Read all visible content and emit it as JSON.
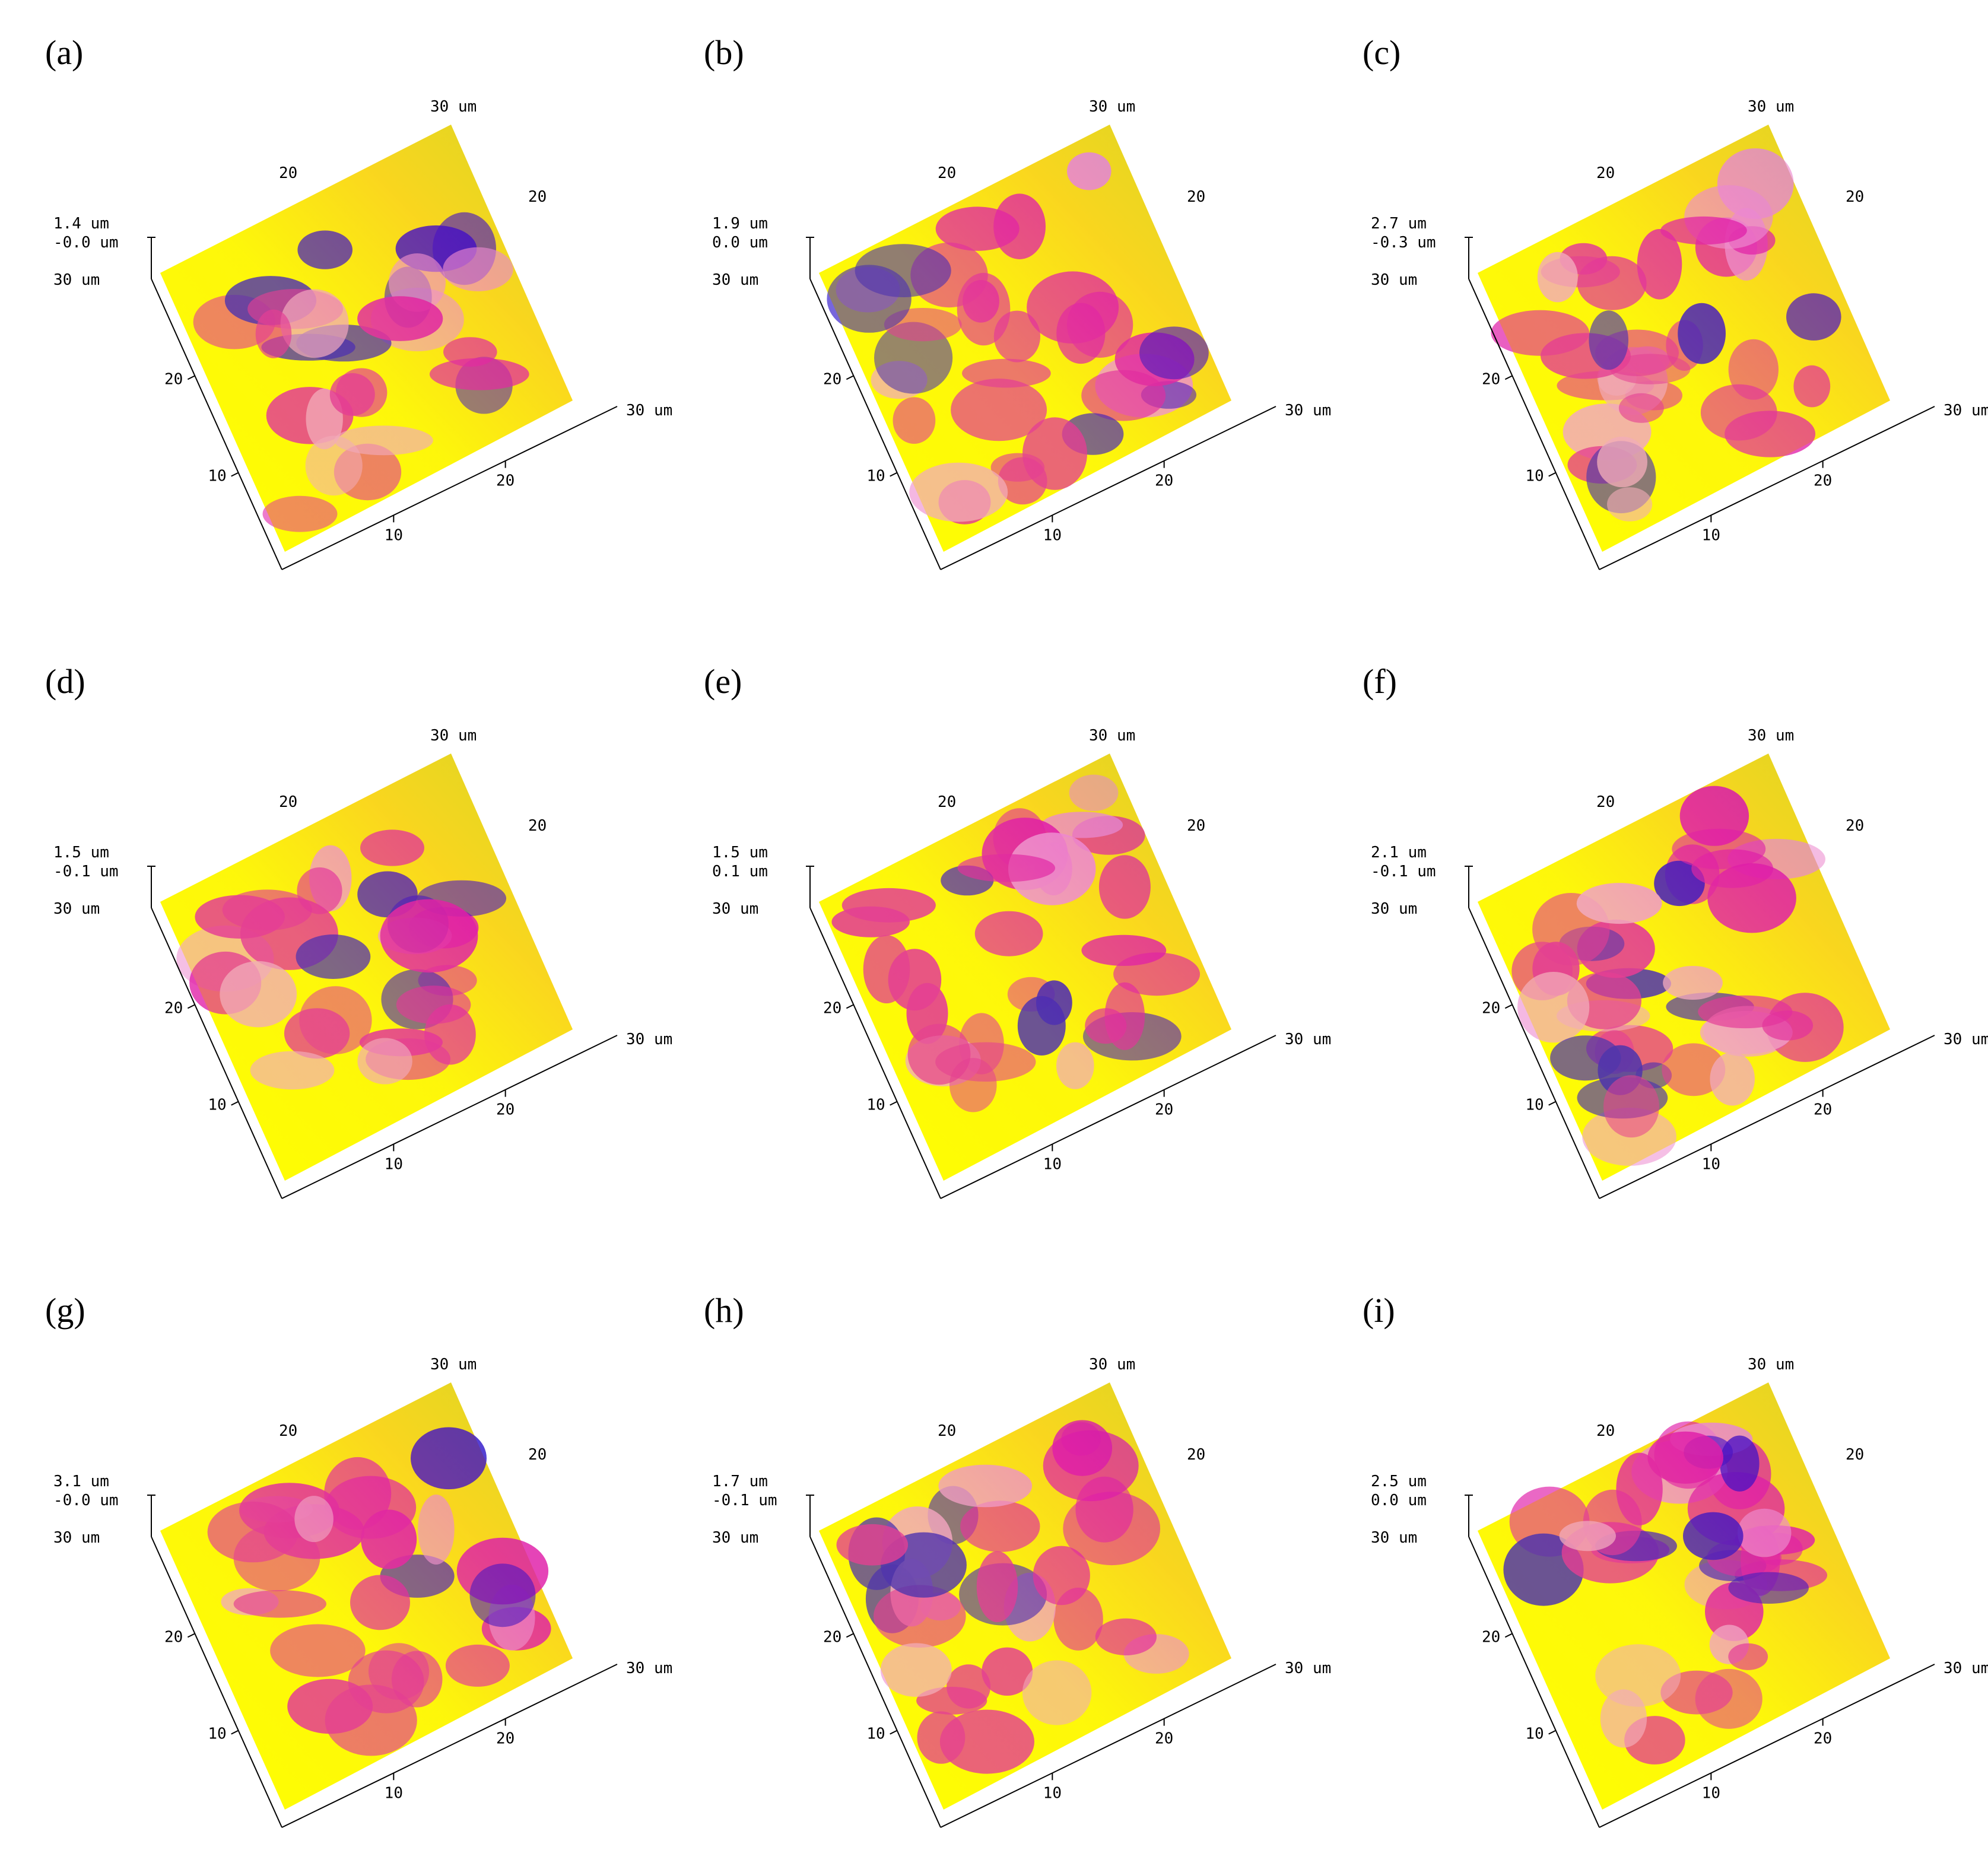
{
  "colors": {
    "low": "#ffff00",
    "mid": "#e01ea8",
    "high": "#2a10c8",
    "axis": "#000000"
  },
  "panels": [
    {
      "label": "(a)",
      "z_top": "1.4 um",
      "z_bottom": "-0.0 um",
      "corner_left": "30 um",
      "corner_right": "30 um",
      "corner_back": "30 um",
      "back_left": "20",
      "back_right": "20",
      "left_ticks": [
        "20",
        "10"
      ],
      "right_ticks": [
        "20",
        "10"
      ]
    },
    {
      "label": "(b)",
      "z_top": "1.9 um",
      "z_bottom": "0.0 um",
      "corner_left": "30 um",
      "corner_right": "30 um",
      "corner_back": "30 um",
      "back_left": "20",
      "back_right": "20",
      "left_ticks": [
        "20",
        "10"
      ],
      "right_ticks": [
        "20",
        "10"
      ]
    },
    {
      "label": "(c)",
      "z_top": "2.7 um",
      "z_bottom": "-0.3 um",
      "corner_left": "30 um",
      "corner_right": "30 um",
      "corner_back": "30 um",
      "back_left": "20",
      "back_right": "20",
      "left_ticks": [
        "20",
        "10"
      ],
      "right_ticks": [
        "20",
        "10"
      ]
    },
    {
      "label": "(d)",
      "z_top": "1.5 um",
      "z_bottom": "-0.1 um",
      "corner_left": "30 um",
      "corner_right": "30 um",
      "corner_back": "30 um",
      "back_left": "20",
      "back_right": "20",
      "left_ticks": [
        "20",
        "10"
      ],
      "right_ticks": [
        "20",
        "10"
      ]
    },
    {
      "label": "(e)",
      "z_top": "1.5 um",
      "z_bottom": "0.1 um",
      "corner_left": "30 um",
      "corner_right": "30 um",
      "corner_back": "30 um",
      "back_left": "20",
      "back_right": "20",
      "left_ticks": [
        "20",
        "10"
      ],
      "right_ticks": [
        "20",
        "10"
      ]
    },
    {
      "label": "(f)",
      "z_top": "2.1 um",
      "z_bottom": "-0.1 um",
      "corner_left": "30 um",
      "corner_right": "30 um",
      "corner_back": "30 um",
      "back_left": "20",
      "back_right": "20",
      "left_ticks": [
        "20",
        "10"
      ],
      "right_ticks": [
        "20",
        "10"
      ]
    },
    {
      "label": "(g)",
      "z_top": "3.1 um",
      "z_bottom": "-0.0 um",
      "corner_left": "30 um",
      "corner_right": "30 um",
      "corner_back": "30 um",
      "back_left": "20",
      "back_right": "20",
      "left_ticks": [
        "20",
        "10"
      ],
      "right_ticks": [
        "20",
        "10"
      ]
    },
    {
      "label": "(h)",
      "z_top": "1.7 um",
      "z_bottom": "-0.1 um",
      "corner_left": "30 um",
      "corner_right": "30 um",
      "corner_back": "30 um",
      "back_left": "20",
      "back_right": "20",
      "left_ticks": [
        "20",
        "10"
      ],
      "right_ticks": [
        "20",
        "10"
      ]
    },
    {
      "label": "(i)",
      "z_top": "2.5 um",
      "z_bottom": "0.0 um",
      "corner_left": "30 um",
      "corner_right": "30 um",
      "corner_back": "30 um",
      "back_left": "20",
      "back_right": "20",
      "left_ticks": [
        "20",
        "10"
      ],
      "right_ticks": [
        "20",
        "10"
      ]
    }
  ]
}
